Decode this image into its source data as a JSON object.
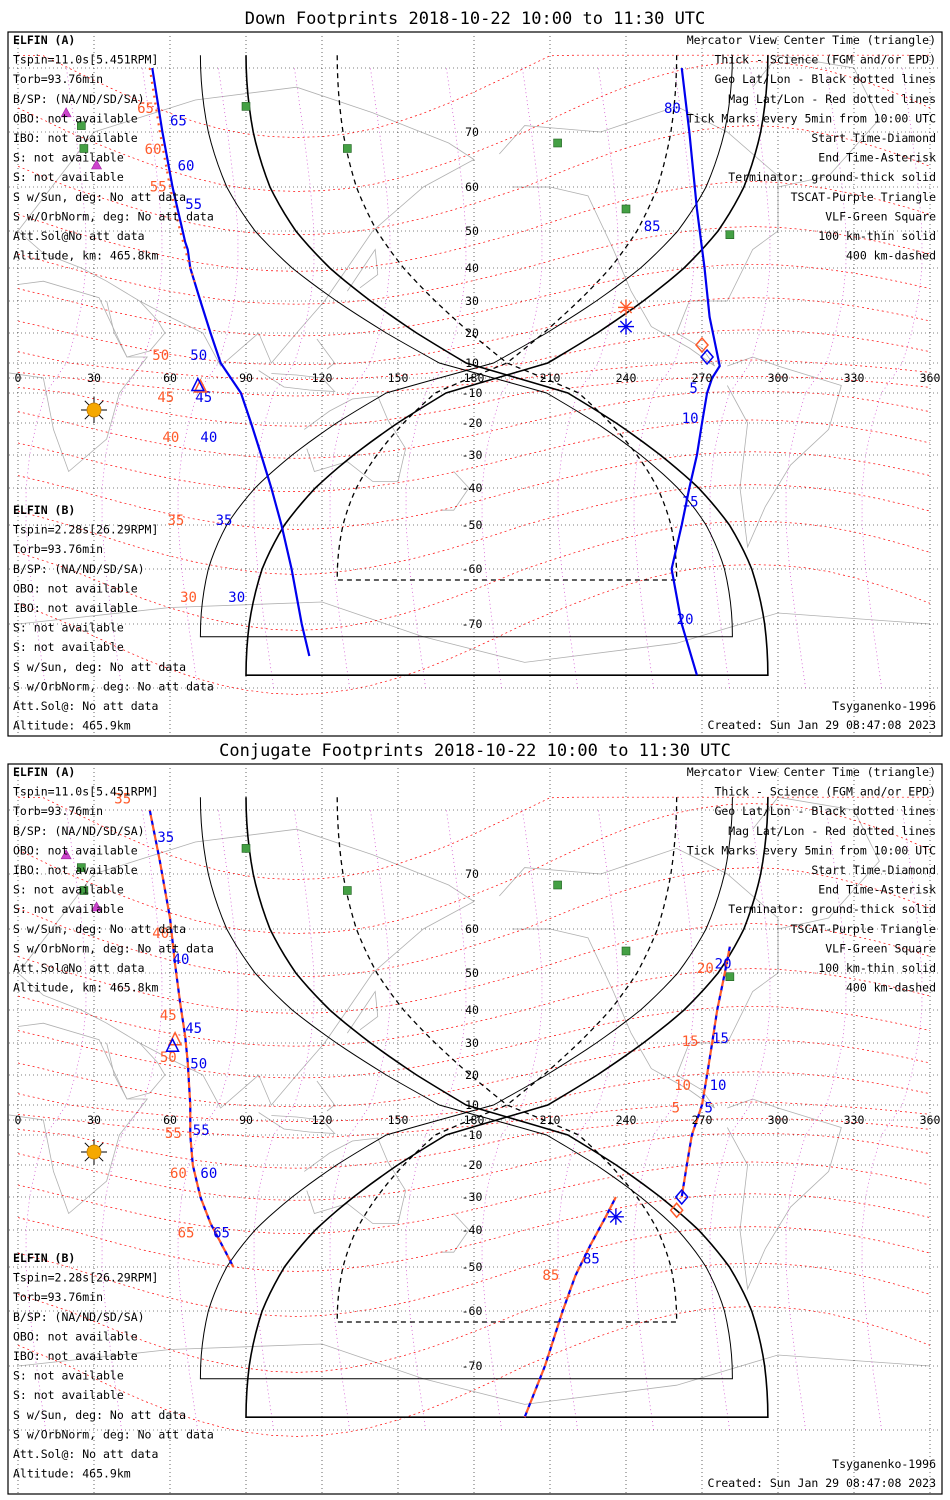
{
  "colors": {
    "elfin_a": "#0000ee",
    "elfin_b": "#ff5a2a",
    "mag_grid": "#ff0000",
    "geo_grid": "#000000",
    "tscat": "#cc44cc",
    "vlf": "#44a044",
    "sun": "#f5a800",
    "land": "#b0b0b0"
  },
  "common": {
    "x_ticks": [
      "0",
      "30",
      "60",
      "90",
      "120",
      "150",
      "180",
      "210",
      "240",
      "270",
      "300",
      "330",
      "360"
    ],
    "y_ticks": [
      "70",
      "60",
      "50",
      "40",
      "30",
      "20",
      "10",
      "-10",
      "-20",
      "-30",
      "-40",
      "-50",
      "-60",
      "-70"
    ],
    "legend": [
      {
        "text": "Mercator View Center Time (triangle)",
        "color": "#000000"
      },
      {
        "text": "Thick - Science (FGM and/or EPD)",
        "color": "#000000"
      },
      {
        "text": "Geo Lat/Lon - Black dotted lines",
        "color": "#000000"
      },
      {
        "text": "Mag Lat/Lon - Red dotted lines",
        "color": "#ff0000"
      },
      {
        "text": "Tick Marks every 5min from 10:00 UTC",
        "color": "#000000"
      },
      {
        "text": "Start Time-Diamond",
        "color": "#000000"
      },
      {
        "text": "End Time-Asterisk",
        "color": "#000000"
      },
      {
        "text": "Terminator: ground-thick solid",
        "color": "#000000"
      },
      {
        "text": "TSCAT-Purple Triangle",
        "color": "#cc44cc"
      },
      {
        "text": "VLF-Green Square",
        "color": "#44a044"
      },
      {
        "text": "100 km-thin solid",
        "color": "#000000"
      },
      {
        "text": "400 km-dashed",
        "color": "#000000"
      }
    ],
    "elfin_a": {
      "name": "ELFIN (A)",
      "lines": [
        "Tspin=11.0s[5.451RPM]",
        "Torb=93.76min",
        "B/SP: (NA/ND/SD/SA)",
        "OBO: not available",
        "IBO: not available",
        "S: not available",
        "S: not available",
        "S w/Sun, deg: No att data",
        "S w/OrbNorm, deg: No att data",
        "Att.Sol@No att data",
        "Altitude, km: 465.8km"
      ]
    },
    "elfin_b": {
      "name": "ELFIN (B)",
      "lines": [
        "Tspin=2.28s[26.29RPM]",
        "Torb=93.76min",
        "B/SP: (NA/ND/SD/SA)",
        "OBO: not available",
        "IBO: not available",
        "S: not available",
        "S: not available",
        "S w/Sun, deg: No att data",
        "S w/OrbNorm, deg: No att data",
        "Att.Sol@: No att data",
        "Altitude: 465.9km"
      ]
    },
    "model": "Tsyganenko-1996",
    "created": "Created: Sun Jan 29 08:47:08 2023"
  },
  "chart_data": [
    {
      "type": "scatter",
      "title": "Down Footprints 2018-10-22 10:00 to 11:30 UTC",
      "projection": "mercator",
      "xlim": [
        0,
        360
      ],
      "ylim": [
        -80,
        80
      ],
      "grid": true,
      "series": [
        {
          "name": "ELFIN (A)",
          "style": "solid",
          "points": [
            [
              53,
              80
            ],
            [
              55,
              75
            ],
            [
              57,
              70
            ],
            [
              59,
              65
            ],
            [
              61,
              60
            ],
            [
              63,
              55
            ],
            [
              65,
              50
            ],
            [
              66,
              47
            ],
            [
              67,
              45
            ],
            [
              68,
              40
            ],
            [
              70,
              35
            ],
            [
              72,
              30
            ],
            [
              74,
              25
            ],
            [
              76,
              20
            ],
            [
              78,
              15
            ],
            [
              80,
              10
            ],
            [
              82,
              5
            ],
            [
              84,
              0
            ],
            [
              86,
              -5
            ],
            [
              88,
              -10
            ],
            [
              90,
              -15
            ],
            [
              92,
              -20
            ],
            [
              94,
              -25
            ],
            [
              96,
              -30
            ],
            [
              98,
              -35
            ],
            [
              100,
              -40
            ],
            [
              102,
              -45
            ],
            [
              104,
              -50
            ],
            [
              106,
              -55
            ],
            [
              108,
              -60
            ],
            [
              110,
              -65
            ],
            [
              112,
              -70
            ],
            [
              115,
              -75
            ]
          ],
          "labels": [
            {
              "text": "65",
              "at": [
                60,
                71
              ]
            },
            {
              "text": "60",
              "at": [
                63,
                63
              ]
            },
            {
              "text": "55",
              "at": [
                66,
                55
              ]
            },
            {
              "text": "50",
              "at": [
                68,
                11
              ]
            },
            {
              "text": "45",
              "at": [
                70,
                -13
              ]
            },
            {
              "text": "40",
              "at": [
                72,
                -26
              ]
            },
            {
              "text": "35",
              "at": [
                78,
                -50
              ]
            },
            {
              "text": "30",
              "at": [
                83,
                -66
              ]
            }
          ]
        },
        {
          "name": "ELFIN (A)",
          "style": "solid",
          "points": [
            [
              268,
              -78
            ],
            [
              262,
              -70
            ],
            [
              258,
              -60
            ],
            [
              262,
              -50
            ],
            [
              265,
              -40
            ],
            [
              268,
              -30
            ],
            [
              270,
              -20
            ],
            [
              272,
              -10
            ],
            [
              274,
              0
            ],
            [
              277,
              8
            ],
            [
              273,
              25
            ],
            [
              271,
              40
            ],
            [
              268,
              55
            ],
            [
              265,
              70
            ],
            [
              262,
              80
            ]
          ],
          "labels": [
            {
              "text": "85",
              "at": [
                247,
                50
              ]
            },
            {
              "text": "80",
              "at": [
                255,
                73
              ]
            },
            {
              "text": "5",
              "at": [
                265,
                -10
              ]
            },
            {
              "text": "10",
              "at": [
                262,
                -20
              ]
            },
            {
              "text": "15",
              "at": [
                262,
                -45
              ]
            },
            {
              "text": "20",
              "at": [
                260,
                -70
              ]
            }
          ]
        },
        {
          "name": "ELFIN (B)",
          "style": "dotted",
          "points": [
            [
              52,
              80
            ],
            [
              54,
              75
            ],
            [
              56,
              70
            ],
            [
              58,
              65
            ],
            [
              60,
              60
            ],
            [
              62,
              55
            ],
            [
              64,
              50
            ],
            [
              66,
              45
            ],
            [
              68,
              40
            ],
            [
              70,
              35
            ]
          ],
          "labels": [
            {
              "text": "65",
              "at": [
                47,
                73
              ]
            },
            {
              "text": "60",
              "at": [
                50,
                66
              ]
            },
            {
              "text": "55",
              "at": [
                52,
                59
              ]
            },
            {
              "text": "50",
              "at": [
                53,
                11
              ]
            },
            {
              "text": "45",
              "at": [
                55,
                -13
              ]
            },
            {
              "text": "40",
              "at": [
                57,
                -26
              ]
            },
            {
              "text": "35",
              "at": [
                59,
                -50
              ]
            },
            {
              "text": "30",
              "at": [
                64,
                -66
              ]
            }
          ]
        }
      ],
      "markers": [
        {
          "name": "ELFIN (B) view center",
          "kind": "triangle",
          "at": [
            72,
            -6
          ]
        },
        {
          "name": "ELFIN (A) view center",
          "kind": "triangle",
          "at": [
            71,
            -5
          ]
        },
        {
          "name": "ELFIN (A) start",
          "kind": "diamond",
          "at": [
            272,
            12
          ]
        },
        {
          "name": "ELFIN (B) start",
          "kind": "diamond",
          "at": [
            270,
            16
          ]
        },
        {
          "name": "ELFIN (A) end",
          "kind": "asterisk",
          "at": [
            240,
            22
          ]
        },
        {
          "name": "ELFIN (B) end",
          "kind": "asterisk",
          "at": [
            240,
            28
          ]
        }
      ],
      "vlf_stations": [
        [
          90,
          74
        ],
        [
          25,
          71
        ],
        [
          130,
          67
        ],
        [
          213,
          68
        ],
        [
          240,
          55
        ],
        [
          281,
          49
        ],
        [
          26,
          67
        ]
      ],
      "tscat": [
        [
          19,
          73
        ],
        [
          31,
          64
        ]
      ]
    },
    {
      "type": "scatter",
      "title": "Conjugate Footprints 2018-10-22 10:00 to 11:30 UTC",
      "projection": "mercator",
      "xlim": [
        0,
        360
      ],
      "ylim": [
        -80,
        80
      ],
      "grid": true,
      "series": [
        {
          "name": "ELFIN (A)",
          "style": "dashed",
          "points": [
            [
              52,
              80
            ],
            [
              56,
              72
            ],
            [
              60,
              62
            ],
            [
              62,
              52
            ],
            [
              64,
              42
            ],
            [
              66,
              32
            ],
            [
              67,
              24
            ],
            [
              68,
              10
            ],
            [
              68,
              0
            ],
            [
              68,
              -10
            ],
            [
              69,
              -20
            ],
            [
              72,
              -30
            ],
            [
              76,
              -38
            ],
            [
              82,
              -46
            ],
            [
              85,
              -50
            ]
          ],
          "labels": [
            {
              "text": "35",
              "at": [
                55,
                75
              ]
            },
            {
              "text": "40",
              "at": [
                61,
                52
              ]
            },
            {
              "text": "45",
              "at": [
                66,
                33
              ]
            },
            {
              "text": "50",
              "at": [
                68,
                22
              ]
            },
            {
              "text": "55",
              "at": [
                69,
                -10
              ]
            },
            {
              "text": "60",
              "at": [
                72,
                -24
              ]
            },
            {
              "text": "65",
              "at": [
                77,
                -42
              ]
            }
          ]
        },
        {
          "name": "ELFIN (A)",
          "style": "dashed",
          "points": [
            [
              200,
              -78
            ],
            [
              208,
              -70
            ],
            [
              215,
              -60
            ],
            [
              220,
              -52
            ],
            [
              226,
              -44
            ],
            [
              232,
              -36
            ],
            [
              236,
              -30
            ]
          ],
          "labels": [
            {
              "text": "85",
              "at": [
                223,
                -49
              ]
            }
          ]
        },
        {
          "name": "ELFIN (A)",
          "style": "dashed",
          "points": [
            [
              262,
              -30
            ],
            [
              264,
              -20
            ],
            [
              266,
              -10
            ],
            [
              268,
              0
            ],
            [
              270,
              10
            ],
            [
              272,
              20
            ],
            [
              274,
              30
            ],
            [
              276,
              40
            ],
            [
              279,
              50
            ],
            [
              281,
              56
            ]
          ],
          "labels": [
            {
              "text": "20",
              "at": [
                275,
                51
              ]
            },
            {
              "text": "15",
              "at": [
                274,
                30
              ]
            },
            {
              "text": "10",
              "at": [
                273,
                15
              ]
            },
            {
              "text": "5",
              "at": [
                271,
                5
              ]
            }
          ]
        },
        {
          "name": "ELFIN (B)",
          "style": "dashed",
          "labels": [
            {
              "text": "35",
              "at": [
                38,
                81
              ]
            },
            {
              "text": "40",
              "at": [
                53,
                58
              ]
            },
            {
              "text": "45",
              "at": [
                56,
                37
              ]
            },
            {
              "text": "50",
              "at": [
                56,
                24
              ]
            },
            {
              "text": "55",
              "at": [
                58,
                -11
              ]
            },
            {
              "text": "60",
              "at": [
                60,
                -24
              ]
            },
            {
              "text": "65",
              "at": [
                63,
                -42
              ]
            },
            {
              "text": "85",
              "at": [
                207,
                -53
              ]
            },
            {
              "text": "20",
              "at": [
                268,
                50
              ]
            },
            {
              "text": "15",
              "at": [
                262,
                29
              ]
            },
            {
              "text": "10",
              "at": [
                259,
                15
              ]
            },
            {
              "text": "5",
              "at": [
                258,
                5
              ]
            }
          ]
        }
      ],
      "markers": [
        {
          "name": "ELFIN (B) view center",
          "kind": "triangle",
          "at": [
            62,
            31
          ]
        },
        {
          "name": "ELFIN (A) view center",
          "kind": "triangle",
          "at": [
            61,
            29
          ]
        },
        {
          "name": "ELFIN (A) start",
          "kind": "diamond",
          "at": [
            262,
            -30
          ]
        },
        {
          "name": "ELFIN (B) start",
          "kind": "diamond",
          "at": [
            260,
            -34
          ]
        },
        {
          "name": "ELFIN (A) end",
          "kind": "asterisk",
          "at": [
            236,
            -36
          ]
        }
      ],
      "vlf_stations": [
        [
          90,
          74
        ],
        [
          25,
          71
        ],
        [
          130,
          67
        ],
        [
          213,
          68
        ],
        [
          240,
          55
        ],
        [
          281,
          49
        ],
        [
          26,
          67
        ]
      ],
      "tscat": [
        [
          19,
          73
        ],
        [
          31,
          64
        ]
      ]
    }
  ]
}
